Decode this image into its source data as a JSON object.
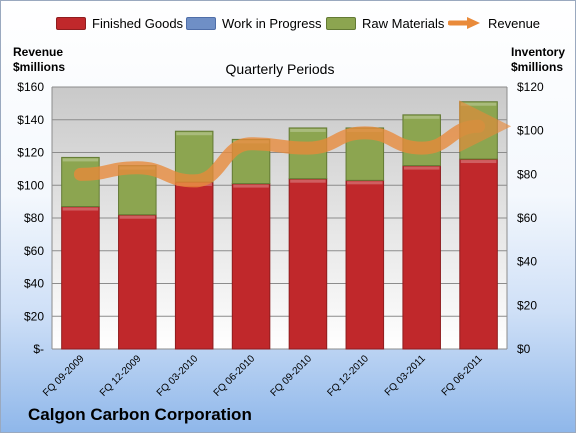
{
  "company": "Calgon Carbon Corporation",
  "legend": {
    "finished_goods": "Finished Goods",
    "work_in_progress": "Work in Progress",
    "raw_materials": "Raw Materials",
    "revenue": "Revenue"
  },
  "left_axis_title": [
    "Revenue",
    "$millions"
  ],
  "right_axis_title": [
    "Inventory",
    "$millions"
  ],
  "colors": {
    "finished_goods": "#c0282b",
    "work_in_progress": "#6f8fc6",
    "raw_materials": "#8ca550",
    "revenue": "#e98a3a"
  },
  "chart_data": {
    "type": "bar",
    "subtitle": "Quarterly Periods",
    "categories": [
      "FQ 09-2009",
      "FQ 12-2009",
      "FQ 03-2010",
      "FQ 06-2010",
      "FQ 09-2010",
      "FQ 12-2010",
      "FQ 03-2011",
      "FQ 06-2011"
    ],
    "stacked_series": [
      {
        "name": "Finished Goods",
        "axis": "left",
        "values": [
          87,
          82,
          102,
          101,
          104,
          103,
          112,
          116
        ]
      },
      {
        "name": "Work in Progress",
        "axis": "left",
        "values": [
          0,
          0,
          0,
          0,
          0,
          0,
          0,
          0
        ]
      },
      {
        "name": "Raw Materials",
        "axis": "left",
        "values": [
          30,
          30,
          31,
          27,
          31,
          32,
          31,
          35
        ]
      }
    ],
    "line_series": {
      "name": "Revenue",
      "axis": "right",
      "values": [
        80,
        83,
        77,
        94,
        92,
        99,
        92,
        102
      ]
    },
    "left_axis": {
      "min": 0,
      "max": 160,
      "step": 20,
      "tick_labels": [
        "$-",
        "$20",
        "$40",
        "$60",
        "$80",
        "$100",
        "$120",
        "$140",
        "$160"
      ]
    },
    "right_axis": {
      "min": 0,
      "max": 120,
      "step": 20,
      "tick_labels": [
        "$0",
        "$20",
        "$40",
        "$60",
        "$80",
        "$100",
        "$120"
      ]
    },
    "grid": true
  }
}
